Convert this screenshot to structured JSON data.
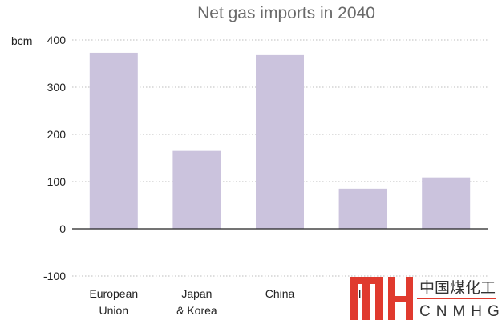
{
  "chart_data": {
    "type": "bar",
    "title": "Net gas imports in 2040",
    "ylabel": "bcm",
    "ylim": [
      -100,
      400
    ],
    "yticks": [
      -100,
      0,
      100,
      200,
      300,
      400
    ],
    "grid": true,
    "categories": [
      [
        "European",
        "Union"
      ],
      [
        "Japan",
        "& Korea"
      ],
      [
        "China"
      ],
      [
        "In"
      ],
      [
        ""
      ]
    ],
    "values": [
      373,
      165,
      368,
      85,
      109
    ],
    "bar_color": "#cbc3dd"
  },
  "watermark": {
    "chinese": "中国煤化工",
    "latin": "CNMHG",
    "color": "#e03a2e"
  }
}
